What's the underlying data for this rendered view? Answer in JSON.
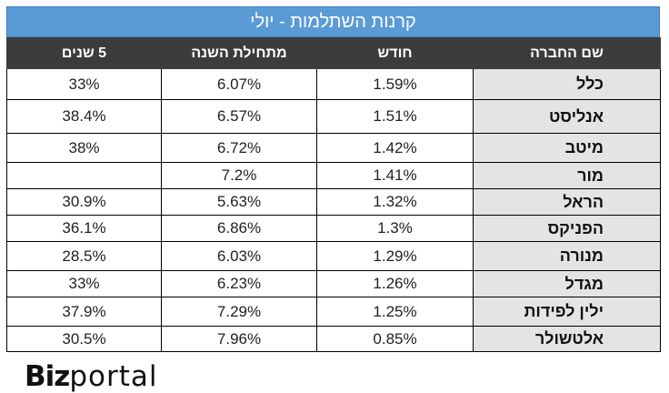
{
  "title": "קרנות השתלמות - יולי",
  "columns": {
    "years5": "5 שנים",
    "ytd": "מתחילת השנה",
    "month": "חודש",
    "company": "שם החברה"
  },
  "rows": [
    {
      "company": "כלל",
      "month": "1.59%",
      "ytd": "6.07%",
      "years5": "33%"
    },
    {
      "company": "אנליסט",
      "month": "1.51%",
      "ytd": "6.57%",
      "years5": "38.4%"
    },
    {
      "company": "מיטב",
      "month": "1.42%",
      "ytd": "6.72%",
      "years5": "38%"
    },
    {
      "company": "מור",
      "month": "1.41%",
      "ytd": "7.2%",
      "years5": ""
    },
    {
      "company": "הראל",
      "month": "1.32%",
      "ytd": "5.63%",
      "years5": "30.9%"
    },
    {
      "company": "הפניקס",
      "month": "1.3%",
      "ytd": "6.86%",
      "years5": "36.1%"
    },
    {
      "company": "מנורה",
      "month": "1.29%",
      "ytd": "6.03%",
      "years5": "28.5%"
    },
    {
      "company": "מגדל",
      "month": "1.26%",
      "ytd": "6.23%",
      "years5": "33%"
    },
    {
      "company": "ילין לפידות",
      "month": "1.25%",
      "ytd": "7.29%",
      "years5": "37.9%"
    },
    {
      "company": "אלטשולר",
      "month": "0.85%",
      "ytd": "7.96%",
      "years5": "30.5%"
    }
  ],
  "logo": {
    "part1": "Biz",
    "part2": "portal"
  }
}
